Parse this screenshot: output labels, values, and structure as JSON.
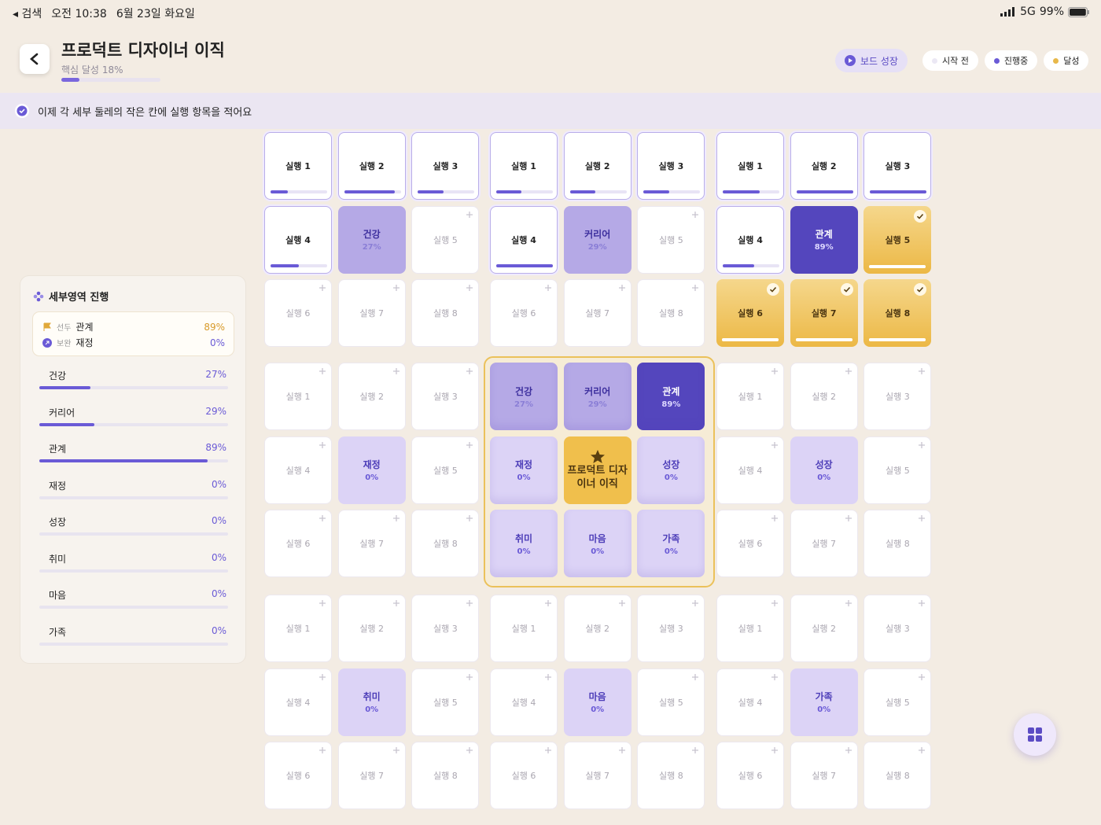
{
  "status": {
    "back": "검색",
    "time": "오전 10:38",
    "date": "6월 23일 화요일",
    "network": "5G",
    "battery": {
      "value": 99,
      "label": "99%"
    }
  },
  "header": {
    "title": "프로덕트 디자이너 이직",
    "progress_label": "핵심 달성",
    "progress": {
      "value": 18,
      "label": "18%"
    },
    "grow_button": "보드 성장",
    "legend": [
      {
        "label": "시작 전",
        "color": "#ebe8f4"
      },
      {
        "label": "진행중",
        "color": "#6a5ad6"
      },
      {
        "label": "달성",
        "color": "#e8b84a"
      }
    ]
  },
  "banner": "이제 각 세부 둘레의 작은 칸에 실행 항목을 적어요",
  "sidebar": {
    "title": "세부영역 진행",
    "lead_tag": "선두",
    "support_tag": "보완"
  },
  "goals": [
    {
      "name": "건강",
      "value": 27,
      "label": "27%"
    },
    {
      "name": "커리어",
      "value": 29,
      "label": "29%"
    },
    {
      "name": "관계",
      "value": 89,
      "label": "89%"
    },
    {
      "name": "재정",
      "value": 0,
      "label": "0%"
    },
    {
      "name": "성장",
      "value": 0,
      "label": "0%"
    },
    {
      "name": "취미",
      "value": 0,
      "label": "0%"
    },
    {
      "name": "마음",
      "value": 0,
      "label": "0%"
    },
    {
      "name": "가족",
      "value": 0,
      "label": "0%"
    }
  ],
  "blocks": [
    {
      "actions": [
        {
          "label": "실행 1",
          "state": "active",
          "progress": 30
        },
        {
          "label": "실행 2",
          "state": "active",
          "progress": 90
        },
        {
          "label": "실행 3",
          "state": "active",
          "progress": 45
        },
        {
          "label": "실행 4",
          "state": "active",
          "progress": 50
        },
        {
          "label": "실행 5",
          "state": "empty"
        },
        {
          "label": "실행 6",
          "state": "empty"
        },
        {
          "label": "실행 7",
          "state": "empty"
        },
        {
          "label": "실행 8",
          "state": "empty"
        }
      ]
    },
    {
      "actions": [
        {
          "label": "실행 1",
          "state": "active",
          "progress": 45
        },
        {
          "label": "실행 2",
          "state": "active",
          "progress": 45
        },
        {
          "label": "실행 3",
          "state": "active",
          "progress": 45
        },
        {
          "label": "실행 4",
          "state": "active",
          "progress": 100
        },
        {
          "label": "실행 5",
          "state": "empty"
        },
        {
          "label": "실행 6",
          "state": "empty"
        },
        {
          "label": "실행 7",
          "state": "empty"
        },
        {
          "label": "실행 8",
          "state": "empty"
        }
      ]
    },
    {
      "actions": [
        {
          "label": "실행 1",
          "state": "active",
          "progress": 65
        },
        {
          "label": "실행 2",
          "state": "active",
          "progress": 100
        },
        {
          "label": "실행 3",
          "state": "active",
          "progress": 100
        },
        {
          "label": "실행 4",
          "state": "active",
          "progress": 55
        },
        {
          "label": "실행 5",
          "state": "done",
          "progress": 100
        },
        {
          "label": "실행 6",
          "state": "done",
          "progress": 100
        },
        {
          "label": "실행 7",
          "state": "done",
          "progress": 100
        },
        {
          "label": "실행 8",
          "state": "done",
          "progress": 100
        }
      ]
    },
    {
      "actions": [
        {
          "label": "실행 1",
          "state": "empty"
        },
        {
          "label": "실행 2",
          "state": "empty"
        },
        {
          "label": "실행 3",
          "state": "empty"
        },
        {
          "label": "실행 4",
          "state": "empty"
        },
        {
          "label": "실행 5",
          "state": "empty"
        },
        {
          "label": "실행 6",
          "state": "empty"
        },
        {
          "label": "실행 7",
          "state": "empty"
        },
        {
          "label": "실행 8",
          "state": "empty"
        }
      ]
    },
    {
      "actions": [
        {
          "label": "실행 1",
          "state": "empty"
        },
        {
          "label": "실행 2",
          "state": "empty"
        },
        {
          "label": "실행 3",
          "state": "empty"
        },
        {
          "label": "실행 4",
          "state": "empty"
        },
        {
          "label": "실행 5",
          "state": "empty"
        },
        {
          "label": "실행 6",
          "state": "empty"
        },
        {
          "label": "실행 7",
          "state": "empty"
        },
        {
          "label": "실행 8",
          "state": "empty"
        }
      ]
    },
    {
      "actions": [
        {
          "label": "실행 1",
          "state": "empty"
        },
        {
          "label": "실행 2",
          "state": "empty"
        },
        {
          "label": "실행 3",
          "state": "empty"
        },
        {
          "label": "실행 4",
          "state": "empty"
        },
        {
          "label": "실행 5",
          "state": "empty"
        },
        {
          "label": "실행 6",
          "state": "empty"
        },
        {
          "label": "실행 7",
          "state": "empty"
        },
        {
          "label": "실행 8",
          "state": "empty"
        }
      ]
    },
    {
      "actions": [
        {
          "label": "실행 1",
          "state": "empty"
        },
        {
          "label": "실행 2",
          "state": "empty"
        },
        {
          "label": "실행 3",
          "state": "empty"
        },
        {
          "label": "실행 4",
          "state": "empty"
        },
        {
          "label": "실행 5",
          "state": "empty"
        },
        {
          "label": "실행 6",
          "state": "empty"
        },
        {
          "label": "실행 7",
          "state": "empty"
        },
        {
          "label": "실행 8",
          "state": "empty"
        }
      ]
    },
    {
      "actions": [
        {
          "label": "실행 1",
          "state": "empty"
        },
        {
          "label": "실행 2",
          "state": "empty"
        },
        {
          "label": "실행 3",
          "state": "empty"
        },
        {
          "label": "실행 4",
          "state": "empty"
        },
        {
          "label": "실행 5",
          "state": "empty"
        },
        {
          "label": "실행 6",
          "state": "empty"
        },
        {
          "label": "실행 7",
          "state": "empty"
        },
        {
          "label": "실행 8",
          "state": "empty"
        }
      ]
    }
  ]
}
